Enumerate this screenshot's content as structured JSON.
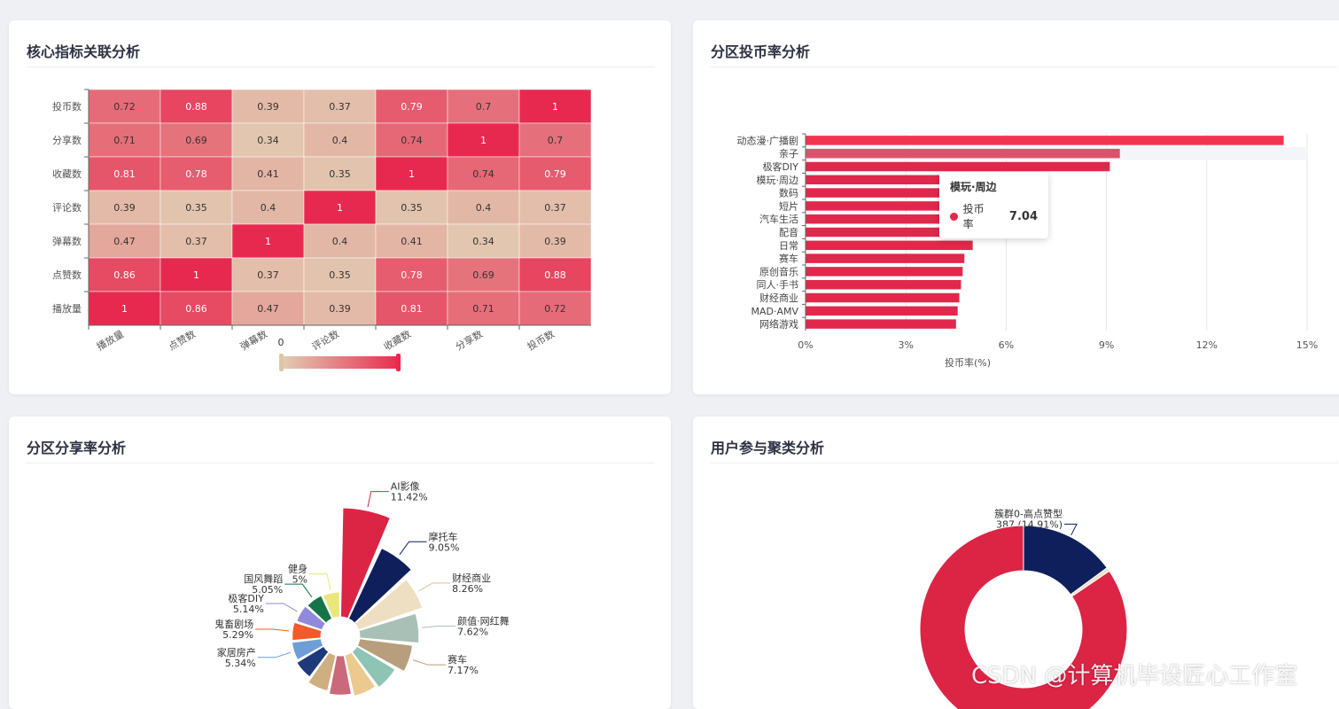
{
  "cards": {
    "heatmap_title": "核心指标关联分析",
    "bar_title": "分区投币率分析",
    "pie_title": "分区分享率分析",
    "donut_title": "用户参与聚类分析"
  },
  "watermark": "CSDN @计算机毕设匠心工作室",
  "chart_data": [
    {
      "type": "heatmap",
      "x_categories": [
        "播放量",
        "点赞数",
        "弹幕数",
        "评论数",
        "收藏数",
        "分享数",
        "投币数"
      ],
      "y_categories": [
        "投币数",
        "分享数",
        "收藏数",
        "评论数",
        "弹幕数",
        "点赞数",
        "播放量"
      ],
      "values": [
        [
          0.72,
          0.88,
          0.39,
          0.37,
          0.79,
          0.7,
          1
        ],
        [
          0.71,
          0.69,
          0.34,
          0.4,
          0.74,
          1,
          0.7
        ],
        [
          0.81,
          0.78,
          0.41,
          0.35,
          1,
          0.74,
          0.79
        ],
        [
          0.39,
          0.35,
          0.4,
          1,
          0.35,
          0.4,
          0.37
        ],
        [
          0.47,
          0.37,
          1,
          0.4,
          0.41,
          0.34,
          0.39
        ],
        [
          0.86,
          1,
          0.37,
          0.35,
          0.78,
          0.69,
          0.88
        ],
        [
          1,
          0.86,
          0.47,
          0.39,
          0.81,
          0.71,
          0.72
        ]
      ],
      "visual_map": {
        "min": 0,
        "max": 1,
        "min_label": "0",
        "colors": [
          "#e2cfb5",
          "#e8294f"
        ]
      }
    },
    {
      "type": "bar",
      "orientation": "horizontal",
      "categories": [
        "动态漫·广播剧",
        "亲子",
        "极客DIY",
        "模玩·周边",
        "数码",
        "短片",
        "汽车生活",
        "配音",
        "日常",
        "赛车",
        "原创音乐",
        "同人·手书",
        "财经商业",
        "MAD·AMV",
        "网络游戏"
      ],
      "values": [
        14.3,
        9.4,
        9.1,
        7.04,
        5.3,
        5.25,
        5.2,
        5.15,
        5.0,
        4.75,
        4.7,
        4.65,
        4.6,
        4.55,
        4.5
      ],
      "xlabel": "投币率(%)",
      "xlim": [
        0,
        15
      ],
      "x_ticks": [
        "0%",
        "3%",
        "6%",
        "9%",
        "12%",
        "15%"
      ],
      "series_name": "投币率",
      "color": "#e1284c",
      "top_color": "#f2334f",
      "highlight_index": 1,
      "highlight_color": "#d9536d",
      "tooltip": {
        "title": "模玩·周边",
        "series": "投币率",
        "value": "7.04"
      }
    },
    {
      "type": "pie",
      "rose": true,
      "slices": [
        {
          "name": "AI影像",
          "pct": "11.42%",
          "value": 11.42,
          "color": "#dc2445"
        },
        {
          "name": "摩托车",
          "pct": "9.05%",
          "value": 9.05,
          "color": "#0f1f5c"
        },
        {
          "name": "财经商业",
          "pct": "8.26%",
          "value": 8.26,
          "color": "#efdfc2"
        },
        {
          "name": "颜值·网红舞",
          "pct": "7.62%",
          "value": 7.62,
          "color": "#a8c0b6"
        },
        {
          "name": "赛车",
          "pct": "7.17%",
          "value": 7.17,
          "color": "#b79e7c"
        },
        {
          "name": "",
          "pct": "",
          "value": 6.5,
          "color": "#8ec4b3"
        },
        {
          "name": "",
          "pct": "",
          "value": 6.3,
          "color": "#ecc98e"
        },
        {
          "name": "",
          "pct": "",
          "value": 6.1,
          "color": "#c9697a"
        },
        {
          "name": "",
          "pct": "",
          "value": 5.9,
          "color": "#cfae82"
        },
        {
          "name": "",
          "pct": "",
          "value": 5.5,
          "color": "#1e3a7a"
        },
        {
          "name": "家居房产",
          "pct": "5.34%",
          "value": 5.34,
          "color": "#6d9fd6"
        },
        {
          "name": "鬼畜剧场",
          "pct": "5.29%",
          "value": 5.29,
          "color": "#f15a2b"
        },
        {
          "name": "极客DIY",
          "pct": "5.14%",
          "value": 5.14,
          "color": "#9189d9"
        },
        {
          "name": "国风舞蹈",
          "pct": "5.05%",
          "value": 5.05,
          "color": "#157548"
        },
        {
          "name": "健身",
          "pct": "5%",
          "value": 5,
          "color": "#e8e87a"
        }
      ]
    },
    {
      "type": "pie",
      "donut": true,
      "slices": [
        {
          "name": "簇群0-高点赞型",
          "label_value": "387 (14.91%)",
          "value": 14.91,
          "color": "#0f1f5c"
        },
        {
          "name": "",
          "label_value": "",
          "value": 0.6,
          "color": "#efdfc2"
        },
        {
          "name": "",
          "label_value": "",
          "value": 84.49,
          "color": "#dc2445"
        }
      ]
    }
  ]
}
